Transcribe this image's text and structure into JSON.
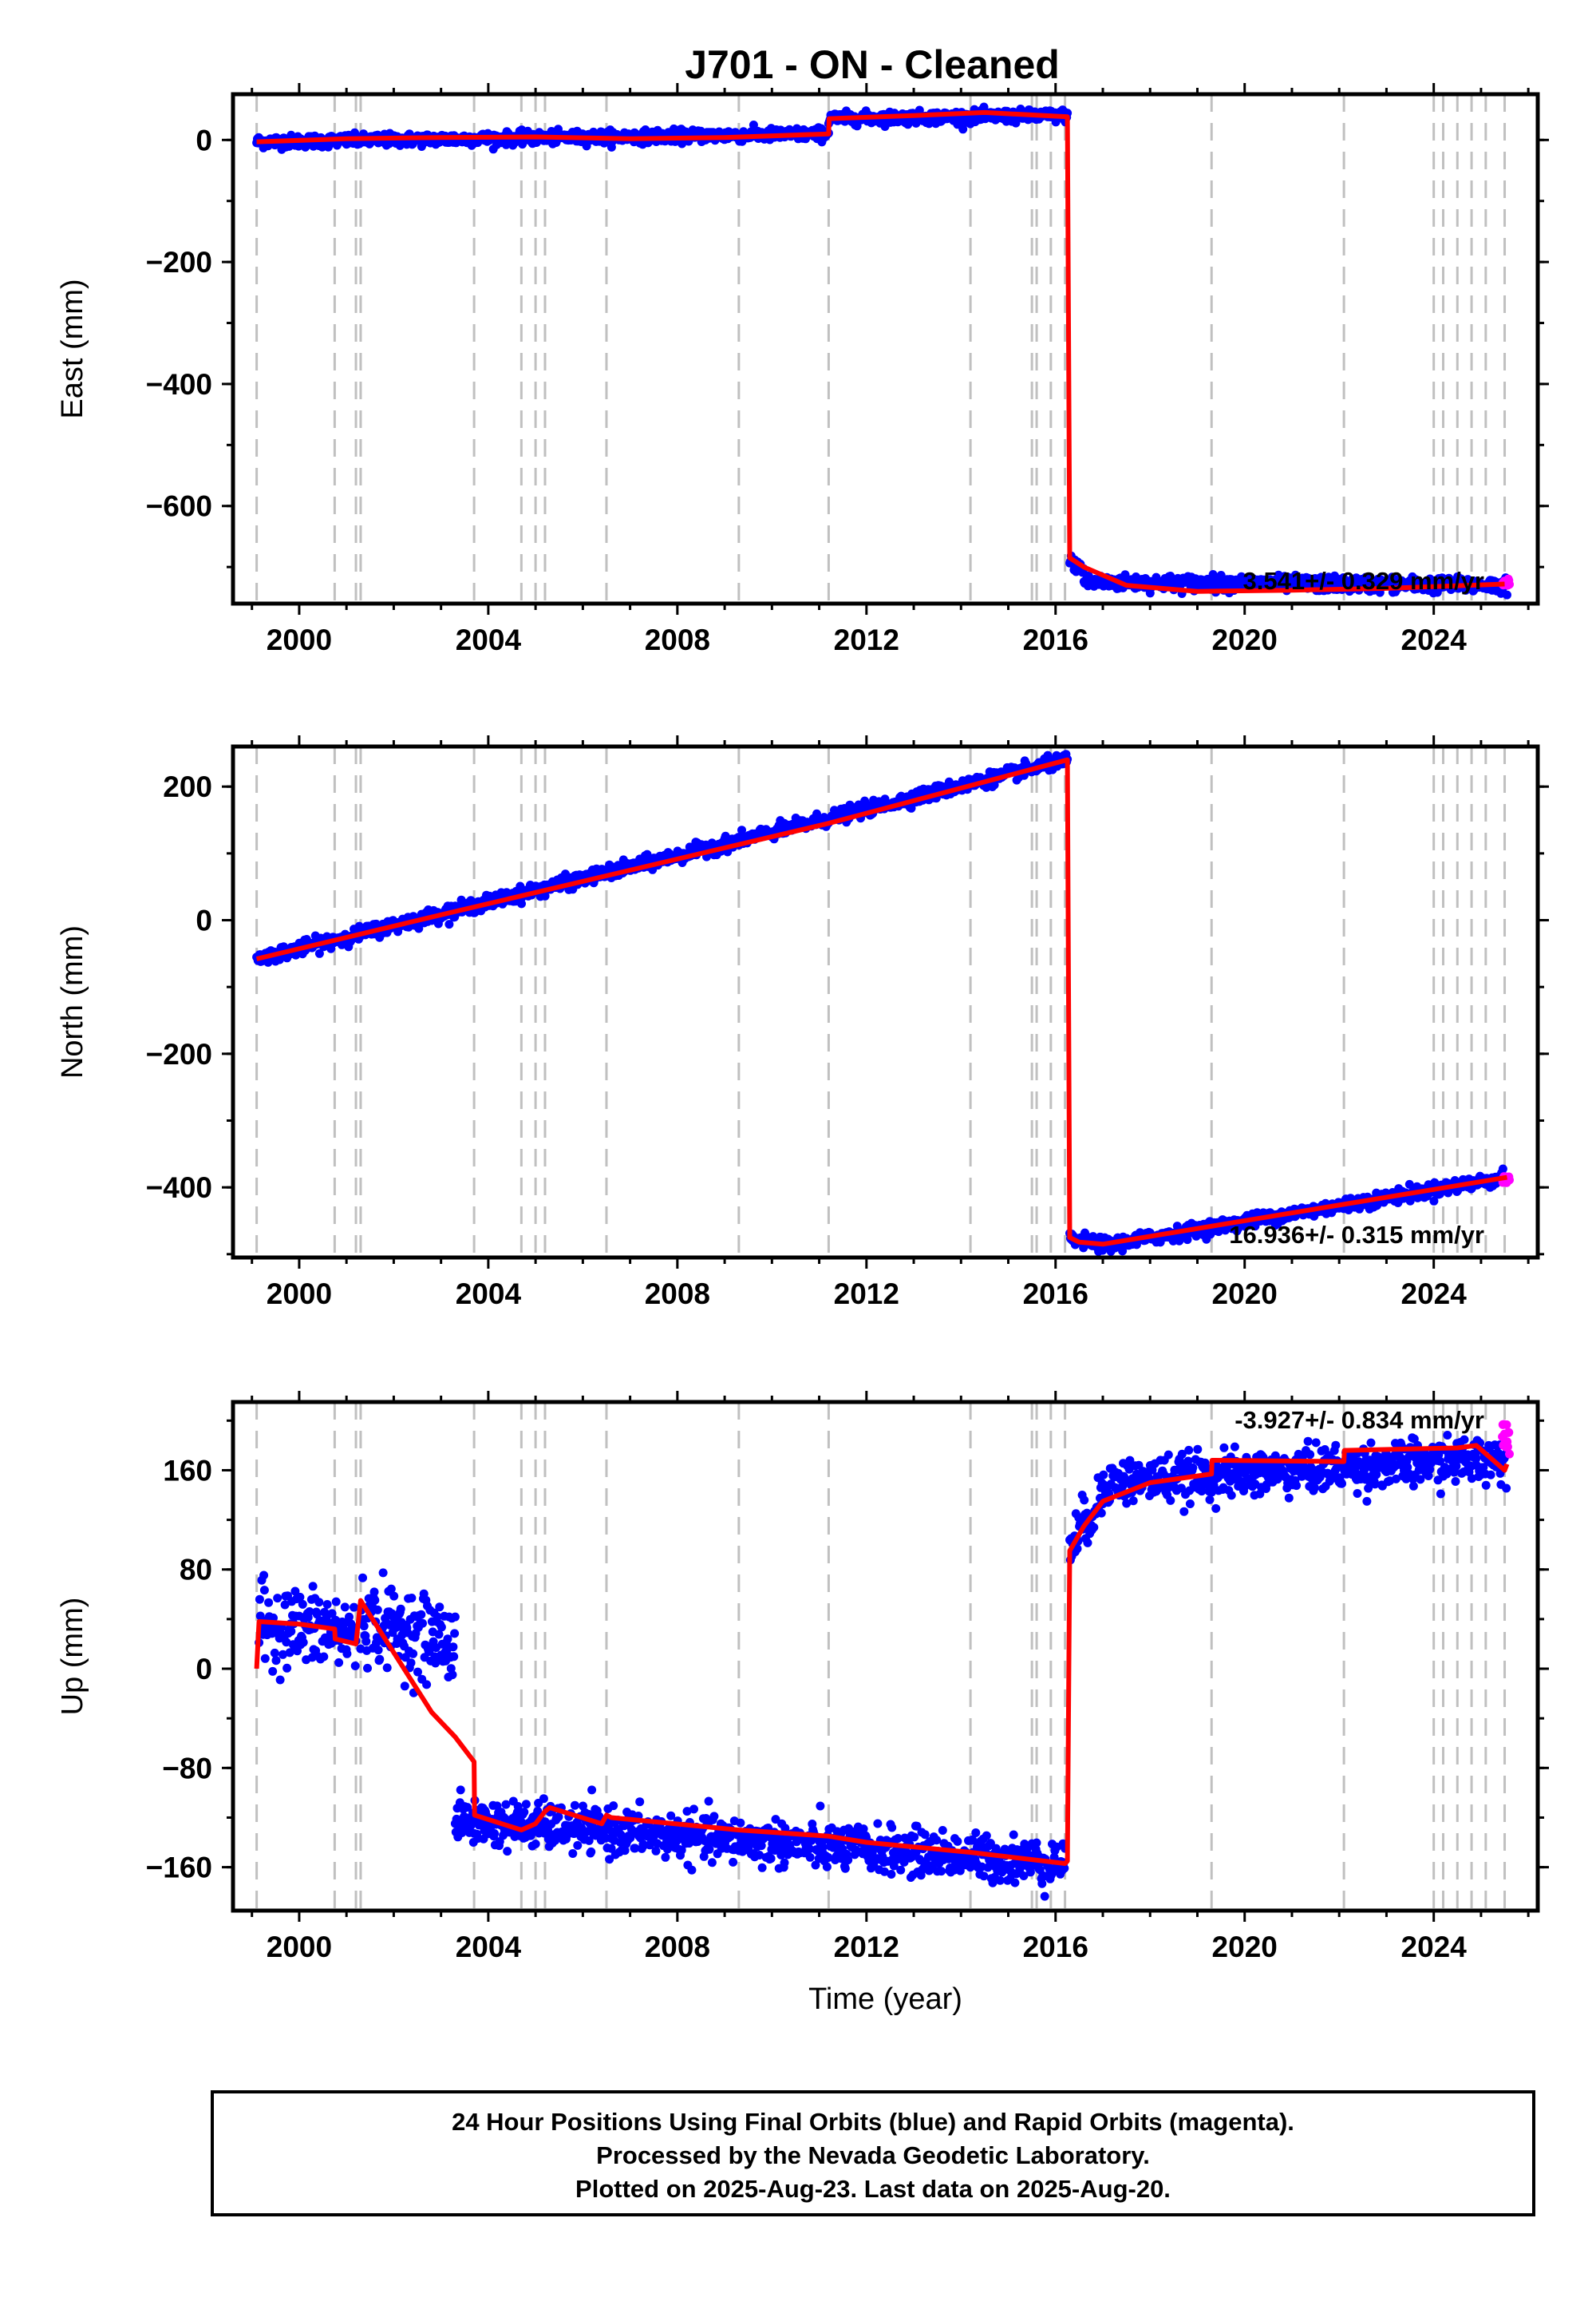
{
  "title": "J701  - ON - Cleaned",
  "colors": {
    "final_orbits": "#0000ff",
    "rapid_orbits": "#ff00ff",
    "model": "#ff0000",
    "event_lines": "#c0c0c0",
    "frame": "#000000"
  },
  "chart_data": [
    {
      "type": "scatter",
      "ylabel": "East (mm)",
      "xlabel": "",
      "xlim": [
        1998.6,
        2026.2
      ],
      "ylim": [
        -760,
        75
      ],
      "xticks": [
        2000,
        2004,
        2008,
        2012,
        2016,
        2020,
        2024
      ],
      "yticks": [
        0,
        -200,
        -400,
        -600
      ],
      "rate_label": "3.541+/- 0.329 mm/yr",
      "event_lines": [
        1999.1,
        2000.75,
        2001.2,
        2001.3,
        2003.7,
        2004.7,
        2005.0,
        2005.2,
        2006.5,
        2009.3,
        2011.2,
        2014.2,
        2015.5,
        2015.6,
        2015.9,
        2016.2,
        2019.3,
        2022.1,
        2024.0,
        2024.2,
        2024.5,
        2024.8,
        2025.1,
        2025.5
      ],
      "model": {
        "x": [
          1999.1,
          2001.0,
          2003.0,
          2005.0,
          2007.0,
          2009.0,
          2011.2,
          2011.21,
          2013.0,
          2014.5,
          2016.25,
          2016.3,
          2016.6,
          2017.5,
          2019.0,
          2021.0,
          2023.0,
          2025.5
        ],
        "y": [
          -3,
          2,
          4,
          5,
          2,
          4,
          10,
          35,
          40,
          45,
          38,
          -685,
          -700,
          -730,
          -740,
          -738,
          -735,
          -728
        ]
      },
      "segments": [
        {
          "x": [
            1999.1,
            2011.2
          ],
          "y": [
            -3,
            10
          ],
          "noise": 5
        },
        {
          "x": [
            2011.2,
            2016.25
          ],
          "y": [
            35,
            40
          ],
          "noise": 5
        },
        {
          "x": [
            2016.3,
            2016.6
          ],
          "y": [
            -690,
            -705
          ],
          "noise": 6
        },
        {
          "x": [
            2016.6,
            2025.55
          ],
          "y": [
            -725,
            -730
          ],
          "noise": 6
        }
      ],
      "rapid": {
        "x": [
          2025.45,
          2025.6
        ],
        "y": [
          -722,
          -732
        ],
        "noise": 5
      }
    },
    {
      "type": "scatter",
      "ylabel": "North (mm)",
      "xlabel": "",
      "xlim": [
        1998.6,
        2026.2
      ],
      "ylim": [
        -505,
        260
      ],
      "xticks": [
        2000,
        2004,
        2008,
        2012,
        2016,
        2020,
        2024
      ],
      "yticks": [
        200,
        0,
        -200,
        -400
      ],
      "rate_label": "16.936+/- 0.315 mm/yr",
      "event_lines": [
        1999.1,
        2000.75,
        2001.2,
        2001.3,
        2003.7,
        2004.7,
        2005.0,
        2005.2,
        2006.5,
        2009.3,
        2011.2,
        2014.2,
        2015.5,
        2015.6,
        2015.9,
        2016.2,
        2019.3,
        2022.1,
        2024.0,
        2024.2,
        2024.5,
        2024.8,
        2025.1,
        2025.5
      ],
      "model": {
        "x": [
          1999.1,
          2003.0,
          2011.2,
          2016.25,
          2016.3,
          2016.5,
          2017.0,
          2025.55
        ],
        "y": [
          -58,
          8,
          145,
          240,
          -475,
          -482,
          -485,
          -385
        ]
      },
      "segments": [
        {
          "x": [
            1999.1,
            2016.25
          ],
          "y": [
            -58,
            240
          ],
          "noise": 5
        },
        {
          "x": [
            2016.3,
            2017.2
          ],
          "y": [
            -478,
            -487
          ],
          "noise": 5
        },
        {
          "x": [
            2017.2,
            2025.55
          ],
          "y": [
            -485,
            -385
          ],
          "noise": 5
        }
      ],
      "rapid": {
        "x": [
          2025.45,
          2025.6
        ],
        "y": [
          -382,
          -392
        ],
        "noise": 5
      }
    },
    {
      "type": "scatter",
      "ylabel": "Up (mm)",
      "xlabel": "Time (year)",
      "xlim": [
        1998.6,
        2026.2
      ],
      "ylim": [
        -195,
        215
      ],
      "xticks": [
        2000,
        2004,
        2008,
        2012,
        2016,
        2020,
        2024
      ],
      "yticks": [
        160,
        80,
        0,
        -80,
        -160
      ],
      "rate_label": "-3.927+/- 0.834 mm/yr",
      "event_lines": [
        1999.1,
        2000.75,
        2001.2,
        2001.3,
        2003.7,
        2004.7,
        2005.0,
        2005.2,
        2006.5,
        2009.3,
        2011.2,
        2014.2,
        2015.5,
        2015.6,
        2015.9,
        2016.2,
        2019.3,
        2022.1,
        2024.0,
        2024.2,
        2024.5,
        2024.8,
        2025.1,
        2025.5
      ],
      "model": {
        "x": [
          1999.1,
          1999.15,
          2000.0,
          2000.75,
          2000.76,
          2001.2,
          2001.3,
          2001.8,
          2002.3,
          2002.8,
          2003.3,
          2003.7,
          2003.71,
          2004.7,
          2005.0,
          2005.2,
          2005.3,
          2006.4,
          2006.5,
          2006.6,
          2009.3,
          2011.2,
          2012.0,
          2014.2,
          2016.2,
          2016.25,
          2016.3,
          2016.6,
          2017.0,
          2018.0,
          2019.3,
          2019.31,
          2022.1,
          2022.11,
          2024.5,
          2024.9,
          2025.5,
          2025.55
        ],
        "y": [
          0,
          38,
          36,
          32,
          24,
          20,
          55,
          25,
          -5,
          -35,
          -55,
          -75,
          -118,
          -130,
          -125,
          -115,
          -112,
          -125,
          -118,
          -120,
          -130,
          -135,
          -140,
          -148,
          -157,
          -155,
          95,
          115,
          135,
          150,
          157,
          168,
          167,
          176,
          178,
          180,
          160,
          165
        ]
      },
      "segments": [
        {
          "x": [
            1999.15,
            2001.2
          ],
          "y": [
            36,
            28
          ],
          "noise": 16
        },
        {
          "x": [
            2001.3,
            2003.3
          ],
          "y": [
            40,
            20
          ],
          "noise": 16
        },
        {
          "x": [
            2003.3,
            2016.2
          ],
          "y": [
            -122,
            -157
          ],
          "noise": 9
        },
        {
          "x": [
            2016.3,
            2017.0
          ],
          "y": [
            100,
            138
          ],
          "noise": 10
        },
        {
          "x": [
            2017.0,
            2025.55
          ],
          "y": [
            150,
            170
          ],
          "noise": 9
        }
      ],
      "rapid": {
        "x": [
          2025.45,
          2025.6
        ],
        "y": [
          165,
          200
        ],
        "noise": 8
      }
    }
  ],
  "footer": {
    "line1": "24 Hour Positions Using Final Orbits (blue) and Rapid Orbits (magenta).",
    "line2": "Processed by the Nevada Geodetic Laboratory.",
    "line3": "Plotted on 2025-Aug-23. Last data on 2025-Aug-20."
  }
}
